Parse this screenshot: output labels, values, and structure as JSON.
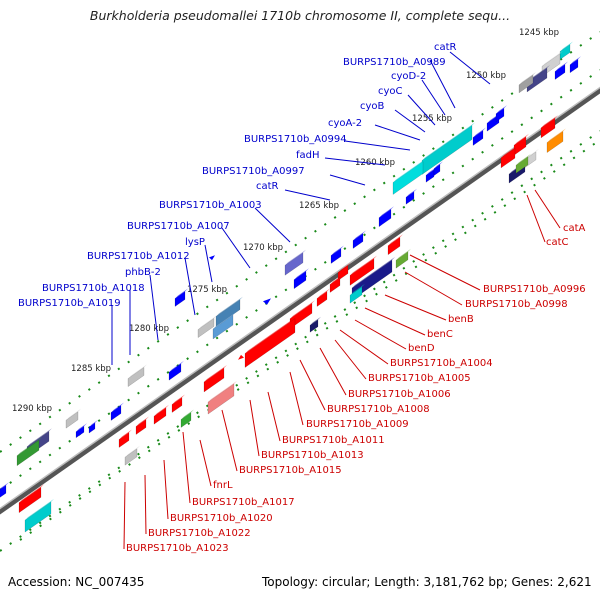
{
  "title": "Burkholderia pseudomallei 1710b chromosome II, complete sequ...",
  "accession": "Accession: NC_007435",
  "topology": "Topology: circular; Length: 3,181,762 bp; Genes: 2,621",
  "kbp_ticks": [
    "1245 kbp",
    "1250 kbp",
    "1255 kbp",
    "1260 kbp",
    "1265 kbp",
    "1270 kbp",
    "1275 kbp",
    "1280 kbp",
    "1285 kbp",
    "1290 kbp"
  ],
  "forward_labels": [
    "catR",
    "BURPS1710b_A0989",
    "cyoD-2",
    "cyoC",
    "cyoB",
    "cyoA-2",
    "BURPS1710b_A0994",
    "fadH",
    "BURPS1710b_A0997",
    "catR",
    "BURPS1710b_A1003",
    "BURPS1710b_A1007",
    "lysP",
    "BURPS1710b_A1012",
    "phbB-2",
    "BURPS1710b_A1018",
    "BURPS1710b_A1019"
  ],
  "reverse_labels": [
    "catA",
    "catC",
    "BURPS1710b_A0996",
    "BURPS1710b_A0998",
    "benB",
    "benC",
    "benD",
    "BURPS1710b_A1004",
    "BURPS1710b_A1005",
    "BURPS1710b_A1006",
    "BURPS1710b_A1008",
    "BURPS1710b_A1009",
    "BURPS1710b_A1011",
    "BURPS1710b_A1013",
    "BURPS1710b_A1015",
    "fnrL",
    "BURPS1710b_A1017",
    "BURPS1710b_A1020",
    "BURPS1710b_A1022",
    "BURPS1710b_A1023"
  ],
  "colors": {
    "backbone": "#8a8a8a",
    "forward_label": "#0000cc",
    "reverse_label": "#cc0000",
    "forward_gene": "#0000ff",
    "reverse_gene": "#ff0000",
    "dots": "#1a8a1a"
  }
}
